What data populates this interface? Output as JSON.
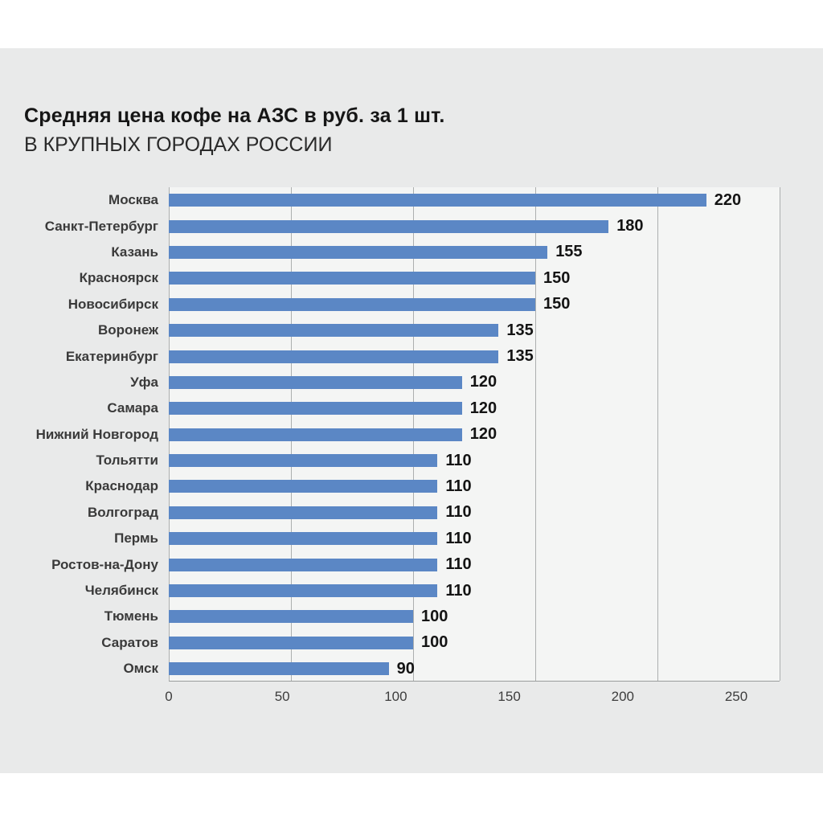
{
  "page": {
    "title": "Средняя цена кофе на АЗС в руб. за 1 шт.",
    "subtitle": "В КРУПНЫХ ГОРОДАХ РОССИИ"
  },
  "colors": {
    "bar": "#5b87c5",
    "panel_background": "#e9eaea",
    "plot_background": "#f4f5f4",
    "gridline": "#acafaf",
    "value_label": "#141414"
  },
  "chart_data": {
    "type": "bar",
    "orientation": "horizontal",
    "title": "Средняя цена кофе на АЗС в руб. за 1 шт.",
    "subtitle": "В КРУПНЫХ ГОРОДАХ РОССИИ",
    "categories": [
      "Москва",
      "Санкт-Петербург",
      "Казань",
      "Красноярск",
      "Новосибирск",
      "Воронеж",
      "Екатеринбург",
      "Уфа",
      "Самара",
      "Нижний Новгород",
      "Тольятти",
      "Краснодар",
      "Волгоград",
      "Пермь",
      "Ростов-на-Дону",
      "Челябинск",
      "Тюмень",
      "Саратов",
      "Омск"
    ],
    "values": [
      220,
      180,
      155,
      150,
      150,
      135,
      135,
      120,
      120,
      120,
      110,
      110,
      110,
      110,
      110,
      110,
      100,
      100,
      90
    ],
    "xlabel": "",
    "ylabel": "",
    "xlim": [
      0,
      250
    ],
    "x_ticks": [
      0,
      50,
      100,
      150,
      200,
      250
    ],
    "grid": true,
    "data_labels": true,
    "legend": false,
    "bar_color": "#5b87c5"
  }
}
